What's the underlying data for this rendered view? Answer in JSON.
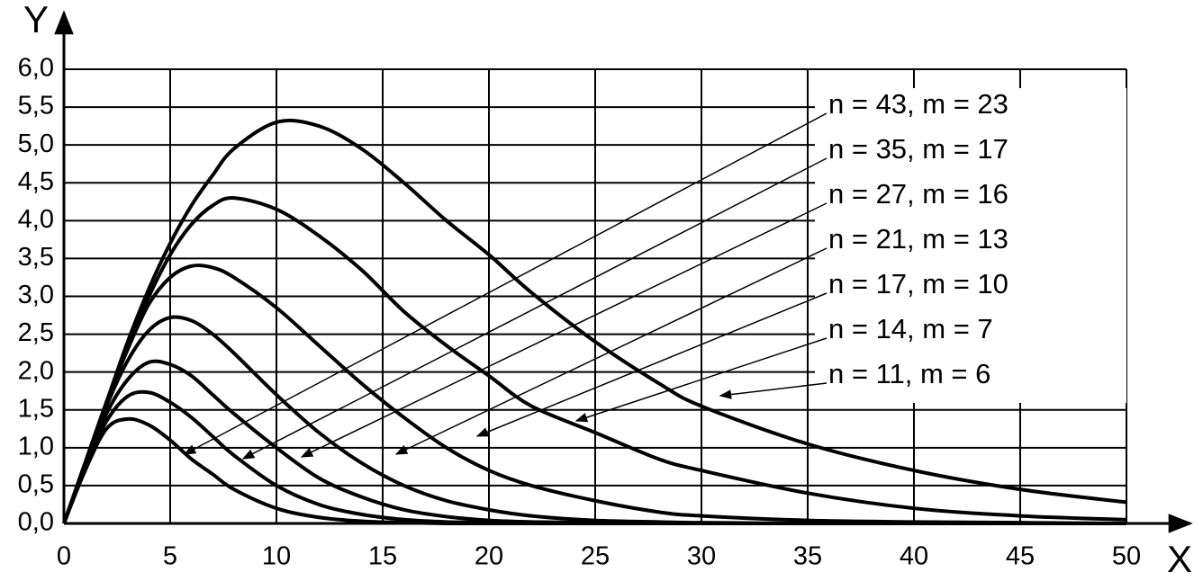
{
  "chart_data": {
    "type": "line",
    "x_label": "X",
    "y_label": "Y",
    "x": [
      0,
      1,
      2,
      3,
      4,
      5,
      6,
      7,
      8,
      10,
      12,
      14,
      16,
      18,
      20,
      22,
      25,
      28,
      30,
      35,
      40,
      45,
      50
    ],
    "series": [
      {
        "name": "n = 43, m = 23",
        "color": "#000000",
        "values": [
          0,
          0.8,
          1.6,
          2.4,
          3.1,
          3.7,
          4.2,
          4.6,
          4.95,
          5.3,
          5.25,
          4.95,
          4.5,
          4.0,
          3.55,
          3.05,
          2.4,
          1.85,
          1.55,
          1.05,
          0.7,
          0.45,
          0.28
        ]
      },
      {
        "name": "n = 35, m = 17",
        "color": "#000000",
        "values": [
          0,
          0.8,
          1.6,
          2.35,
          3.0,
          3.55,
          3.95,
          4.2,
          4.3,
          4.15,
          3.8,
          3.35,
          2.8,
          2.35,
          1.95,
          1.55,
          1.2,
          0.85,
          0.7,
          0.4,
          0.2,
          0.1,
          0.05
        ]
      },
      {
        "name": "n = 27, m = 16",
        "color": "#000000",
        "values": [
          0,
          0.8,
          1.6,
          2.3,
          2.9,
          3.25,
          3.4,
          3.38,
          3.25,
          2.85,
          2.35,
          1.85,
          1.4,
          1.0,
          0.7,
          0.5,
          0.3,
          0.15,
          0.1,
          0.04,
          0.02,
          0.01,
          0
        ]
      },
      {
        "name": "n = 21, m = 13",
        "color": "#000000",
        "values": [
          0,
          0.8,
          1.55,
          2.15,
          2.55,
          2.72,
          2.68,
          2.5,
          2.25,
          1.7,
          1.2,
          0.8,
          0.5,
          0.3,
          0.18,
          0.1,
          0.04,
          0.02,
          0.01,
          0,
          0,
          0,
          0
        ]
      },
      {
        "name": "n = 17, m = 10",
        "color": "#000000",
        "values": [
          0,
          0.75,
          1.45,
          1.9,
          2.13,
          2.1,
          1.95,
          1.7,
          1.45,
          1.0,
          0.6,
          0.35,
          0.18,
          0.09,
          0.04,
          0.02,
          0.01,
          0,
          0,
          0,
          0,
          0,
          0
        ]
      },
      {
        "name": "n = 14, m = 7",
        "color": "#000000",
        "values": [
          0,
          0.75,
          1.35,
          1.68,
          1.73,
          1.6,
          1.4,
          1.15,
          0.9,
          0.5,
          0.25,
          0.12,
          0.05,
          0.02,
          0.01,
          0,
          0,
          0,
          0,
          0,
          0,
          0,
          0
        ]
      },
      {
        "name": "n = 11, m = 6",
        "color": "#000000",
        "values": [
          0,
          0.7,
          1.25,
          1.38,
          1.3,
          1.1,
          0.85,
          0.65,
          0.45,
          0.2,
          0.08,
          0.03,
          0.01,
          0,
          0,
          0,
          0,
          0,
          0,
          0,
          0,
          0,
          0
        ]
      }
    ],
    "xlim": [
      0,
      50
    ],
    "ylim": [
      0,
      6
    ],
    "xticks": [
      0,
      5,
      10,
      15,
      20,
      25,
      30,
      35,
      40,
      45,
      50
    ],
    "yticks": [
      {
        "value": 0,
        "label": "0,0"
      },
      {
        "value": 0.5,
        "label": "0,5"
      },
      {
        "value": 1,
        "label": "1,0"
      },
      {
        "value": 1.5,
        "label": "1,5"
      },
      {
        "value": 2,
        "label": "2,0"
      },
      {
        "value": 2.5,
        "label": "2,5"
      },
      {
        "value": 3,
        "label": "3,0"
      },
      {
        "value": 3.5,
        "label": "3,5"
      },
      {
        "value": 4,
        "label": "4,0"
      },
      {
        "value": 4.5,
        "label": "4,5"
      },
      {
        "value": 5,
        "label": "5,0"
      },
      {
        "value": 5.5,
        "label": "5,5"
      },
      {
        "value": 6,
        "label": "6,0"
      }
    ],
    "grid": true,
    "legend": "upper right"
  }
}
